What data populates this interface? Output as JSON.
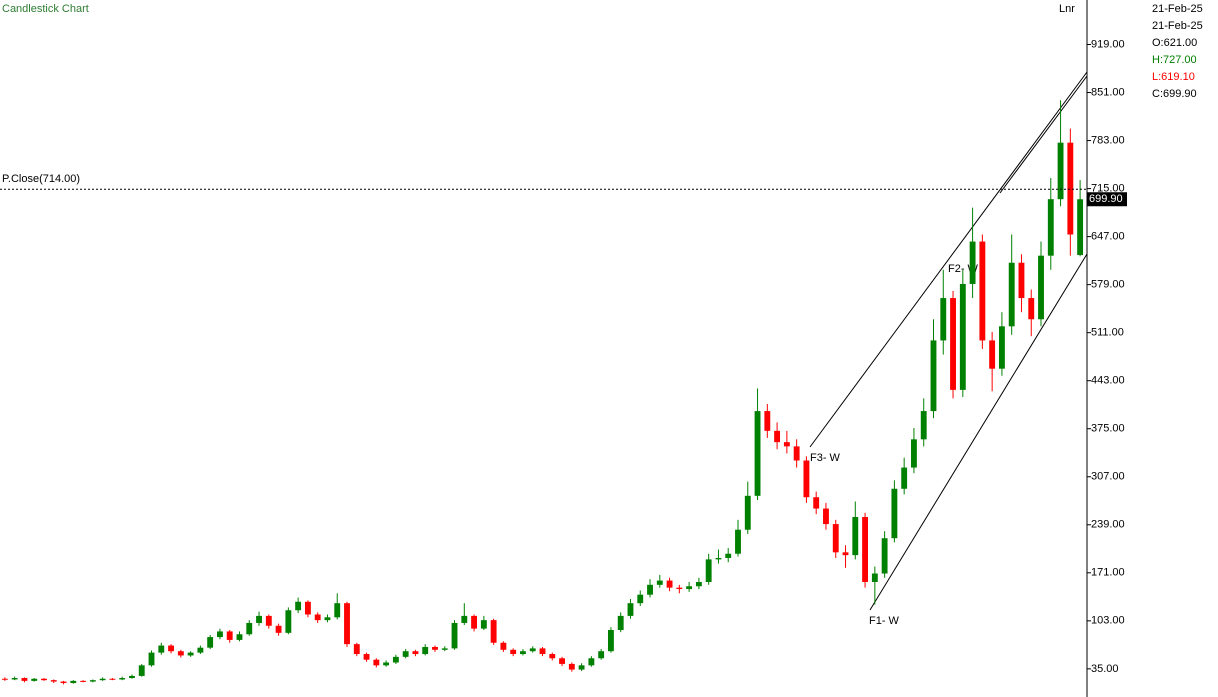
{
  "chart_data": {
    "type": "candlestick",
    "title": "Candlestick Chart",
    "scale_label": "Lnr",
    "ylim": [
      -2,
      982
    ],
    "yticks": [
      {
        "value": 35,
        "label": "35.00"
      },
      {
        "value": 103,
        "label": "103.00"
      },
      {
        "value": 171,
        "label": "171.00"
      },
      {
        "value": 239,
        "label": "239.00"
      },
      {
        "value": 307,
        "label": "307.00"
      },
      {
        "value": 375,
        "label": "375.00"
      },
      {
        "value": 443,
        "label": "443.00"
      },
      {
        "value": 511,
        "label": "511.00"
      },
      {
        "value": 579,
        "label": "579.00"
      },
      {
        "value": 647,
        "label": "647.00"
      },
      {
        "value": 715,
        "label": "715.00"
      },
      {
        "value": 783,
        "label": "783.00"
      },
      {
        "value": 851,
        "label": "851.00"
      },
      {
        "value": 919,
        "label": "919.00"
      }
    ],
    "up_color": "#008000",
    "down_color": "#ff0000",
    "open": [
      21,
      20,
      22,
      18,
      21,
      19,
      17,
      15,
      18,
      17,
      19,
      21,
      20,
      22,
      25,
      40,
      58,
      68,
      60,
      54,
      58,
      65,
      80,
      88,
      76,
      84,
      100,
      110,
      96,
      86,
      118,
      130,
      112,
      104,
      108,
      128,
      70,
      56,
      48,
      40,
      44,
      52,
      60,
      56,
      66,
      62,
      64,
      100,
      110,
      92,
      104,
      72,
      62,
      56,
      60,
      64,
      56,
      50,
      42,
      34,
      40,
      50,
      60,
      90,
      110,
      128,
      140,
      154,
      160,
      150,
      148,
      152,
      158,
      190,
      192,
      198,
      232,
      280,
      400,
      372,
      356,
      350,
      330,
      278,
      262,
      240,
      200,
      196,
      250,
      158,
      170,
      220,
      290,
      320,
      360,
      400,
      500,
      560,
      430,
      580,
      640,
      500,
      460,
      520,
      610,
      560,
      530,
      620,
      700,
      780,
      621
    ],
    "high": [
      23,
      24,
      23,
      22,
      22,
      20,
      18,
      19,
      19,
      20,
      23,
      22,
      24,
      27,
      42,
      61,
      72,
      70,
      62,
      60,
      68,
      83,
      92,
      90,
      88,
      104,
      116,
      112,
      99,
      122,
      136,
      132,
      115,
      112,
      142,
      130,
      72,
      58,
      50,
      47,
      55,
      63,
      62,
      70,
      68,
      67,
      104,
      128,
      112,
      110,
      106,
      74,
      64,
      63,
      67,
      66,
      58,
      52,
      44,
      43,
      53,
      63,
      94,
      115,
      134,
      146,
      162,
      168,
      164,
      154,
      158,
      164,
      198,
      204,
      206,
      246,
      300,
      432,
      410,
      384,
      372,
      360,
      336,
      286,
      270,
      246,
      210,
      272,
      256,
      180,
      230,
      302,
      334,
      376,
      418,
      530,
      600,
      570,
      600,
      688,
      650,
      512,
      540,
      650,
      622,
      572,
      640,
      730,
      840,
      800,
      727
    ],
    "low": [
      18,
      19,
      16,
      17,
      18,
      15,
      13,
      14,
      16,
      16,
      18,
      19,
      19,
      21,
      24,
      38,
      55,
      57,
      51,
      52,
      56,
      63,
      77,
      72,
      74,
      82,
      96,
      92,
      82,
      84,
      114,
      108,
      100,
      101,
      105,
      66,
      53,
      45,
      37,
      38,
      42,
      50,
      53,
      54,
      59,
      60,
      62,
      97,
      88,
      90,
      69,
      59,
      53,
      54,
      58,
      53,
      47,
      39,
      31,
      32,
      38,
      48,
      58,
      87,
      106,
      124,
      136,
      150,
      145,
      142,
      144,
      148,
      154,
      184,
      186,
      194,
      226,
      274,
      362,
      346,
      340,
      320,
      270,
      254,
      232,
      192,
      178,
      190,
      150,
      126,
      164,
      214,
      282,
      312,
      350,
      390,
      480,
      418,
      420,
      560,
      488,
      428,
      450,
      508,
      540,
      506,
      520,
      600,
      690,
      620,
      619.1
    ],
    "close": [
      20,
      22,
      18,
      21,
      19,
      17,
      15,
      18,
      17,
      19,
      21,
      20,
      22,
      25,
      40,
      58,
      68,
      60,
      54,
      58,
      65,
      80,
      88,
      76,
      84,
      100,
      110,
      96,
      86,
      118,
      130,
      112,
      104,
      108,
      128,
      70,
      56,
      48,
      40,
      44,
      52,
      60,
      56,
      66,
      62,
      64,
      100,
      110,
      92,
      104,
      72,
      62,
      56,
      60,
      64,
      56,
      50,
      42,
      34,
      40,
      50,
      60,
      90,
      110,
      128,
      140,
      154,
      160,
      150,
      148,
      152,
      158,
      190,
      192,
      198,
      232,
      280,
      400,
      372,
      356,
      350,
      330,
      278,
      262,
      240,
      200,
      196,
      250,
      158,
      170,
      220,
      290,
      320,
      360,
      400,
      500,
      560,
      430,
      580,
      640,
      500,
      460,
      520,
      610,
      560,
      530,
      620,
      700,
      780,
      650,
      699.9
    ],
    "last_label": "699.90",
    "prev_close": 714,
    "prev_close_label": "P.Close(714.00)",
    "annotations": [
      "F1- W",
      "F2- W",
      "F3- W"
    ],
    "info": [
      "21-Feb-25",
      "21-Feb-25",
      "O:621.00",
      "H:727.00",
      "L:619.10",
      "C:699.90"
    ]
  }
}
